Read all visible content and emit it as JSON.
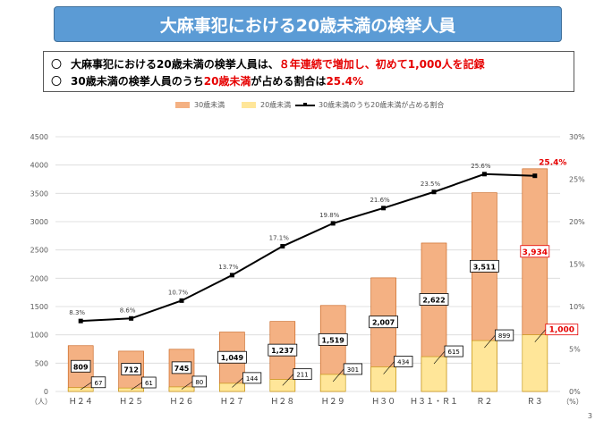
{
  "title": "大麻事犯における20歳未満の検挙人員",
  "bullets": [
    {
      "mark": "〇",
      "text_prefix": "大麻事犯における20歳未満の検挙人員は、",
      "text_highlight": "８年連続で増加し、初めて1,000人を記録",
      "text_suffix": ""
    },
    {
      "mark": "〇",
      "text_prefix": "30歳未満の検挙人員のうち",
      "text_highlight": "20歳未満",
      "text_suffix": "が占める割合は",
      "text_highlight2": "25.4%"
    }
  ],
  "legend": {
    "under30": "30歳未満",
    "under20": "20歳未満",
    "ratio": "30歳未満のうち20歳未満が占める割合"
  },
  "page_number": "3",
  "chart_data": {
    "type": "bar",
    "stacked": true,
    "categories": [
      "Ｈ２４",
      "Ｈ２５",
      "Ｈ２６",
      "Ｈ２７",
      "Ｈ２８",
      "Ｈ２９",
      "Ｈ３０",
      "Ｈ３１・Ｒ１",
      "Ｒ２",
      "Ｒ３"
    ],
    "series": [
      {
        "name": "30歳未満",
        "values": [
          809,
          712,
          745,
          1049,
          1237,
          1519,
          2007,
          2622,
          3511,
          3934
        ],
        "color": "#f4b183",
        "labels": [
          "809",
          "712",
          "745",
          "1,049",
          "1,237",
          "1,519",
          "2,007",
          "2,622",
          "3,511",
          "3,934"
        ]
      },
      {
        "name": "20歳未満",
        "values": [
          67,
          61,
          80,
          144,
          211,
          301,
          434,
          615,
          899,
          1000
        ],
        "color": "#ffe699",
        "labels": [
          "67",
          "61",
          "80",
          "144",
          "211",
          "301",
          "434",
          "615",
          "899",
          "1,000"
        ]
      },
      {
        "name": "30歳未満のうち20歳未満が占める割合",
        "axis": "right",
        "values": [
          8.3,
          8.6,
          10.7,
          13.7,
          17.1,
          19.8,
          21.6,
          23.5,
          25.6,
          25.4
        ],
        "labels": [
          "8.3%",
          "8.6%",
          "10.7%",
          "13.7%",
          "17.1%",
          "19.8%",
          "21.6%",
          "23.5%",
          "25.6%",
          "25.4%"
        ],
        "color": "#000000"
      }
    ],
    "ylim": [
      0,
      4500
    ],
    "yticks": [
      0,
      500,
      1000,
      1500,
      2000,
      2500,
      3000,
      3500,
      4000,
      4500
    ],
    "y2lim": [
      0,
      30
    ],
    "y2ticks": [
      0,
      5,
      10,
      15,
      20,
      25,
      30
    ],
    "y_unit": "（人）",
    "y2_unit": "（%）",
    "highlight_color": "#e60000"
  }
}
